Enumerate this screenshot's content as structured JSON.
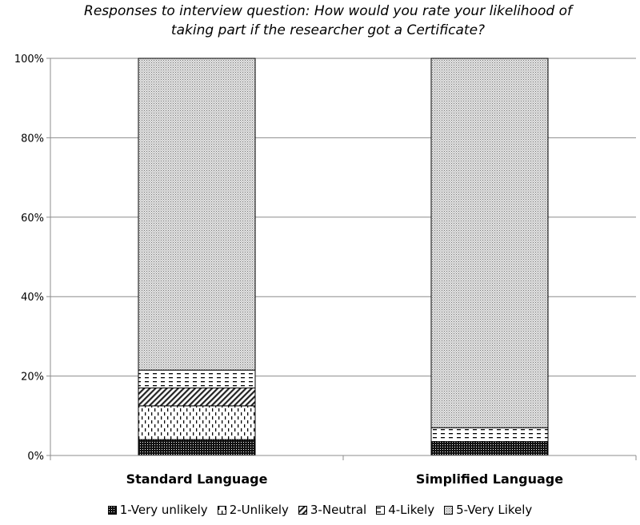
{
  "chart_data": {
    "type": "bar",
    "stacked": true,
    "percent": true,
    "title": "Responses to interview question: How would you rate your likelihood of taking part if the researcher got a Certificate?",
    "title_lines": [
      "Responses to interview question: How would you rate your likelihood of",
      "taking part if the researcher got a Certificate?"
    ],
    "xlabel": "",
    "ylabel": "",
    "ylim": [
      0,
      100
    ],
    "yticks": [
      "0%",
      "20%",
      "40%",
      "60%",
      "80%",
      "100%"
    ],
    "grid": true,
    "legend_position": "bottom",
    "categories": [
      "Standard Language",
      "Simplified Language"
    ],
    "series": [
      {
        "name": "1-Very unlikely",
        "pattern": "dense-dots",
        "values": [
          4.0,
          3.5
        ]
      },
      {
        "name": "2-Unlikely",
        "pattern": "vertical-dashes",
        "values": [
          8.5,
          0.0
        ]
      },
      {
        "name": "3-Neutral",
        "pattern": "diagonal-hatch",
        "values": [
          4.5,
          0.0
        ]
      },
      {
        "name": "4-Likely",
        "pattern": "horizontal-dashes",
        "values": [
          4.5,
          3.5
        ]
      },
      {
        "name": "5-Very Likely",
        "pattern": "fine-dots",
        "values": [
          78.5,
          93.0
        ]
      }
    ]
  }
}
